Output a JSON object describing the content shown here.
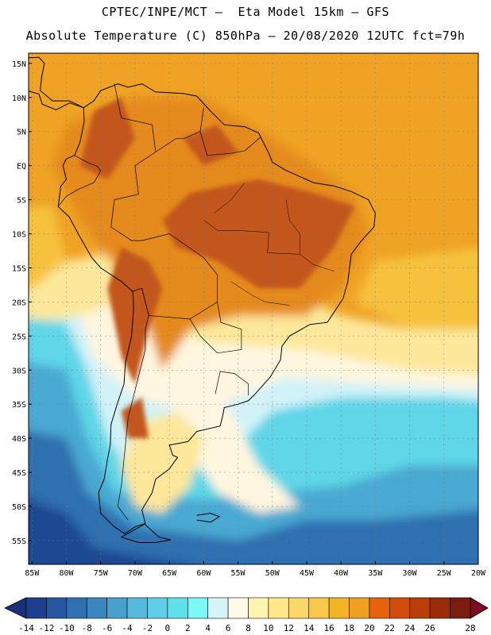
{
  "header": {
    "line1": "CPTEC/INPE/MCT —  Eta Model 15km — GFS",
    "line2": "Absolute Temperature (C) 850hPa — 20/08/2020 12UTC fct=79h"
  },
  "map": {
    "lat_labels": [
      "15N",
      "10N",
      "5N",
      "EQ",
      "5S",
      "10S",
      "15S",
      "20S",
      "25S",
      "30S",
      "35S",
      "40S",
      "45S",
      "50S",
      "55S"
    ],
    "lon_labels": [
      "85W",
      "80W",
      "75W",
      "70W",
      "65W",
      "60W",
      "55W",
      "50W",
      "45W",
      "40W",
      "35W",
      "30W",
      "25W",
      "20W"
    ],
    "lat_values": [
      15,
      10,
      5,
      0,
      -5,
      -10,
      -15,
      -20,
      -25,
      -30,
      -35,
      -40,
      -45,
      -50,
      -55
    ],
    "lon_values": [
      -85,
      -80,
      -75,
      -70,
      -65,
      -60,
      -55,
      -50,
      -45,
      -40,
      -35,
      -30,
      -25,
      -20
    ],
    "extent": {
      "lon_min": -85.5,
      "lon_max": -20,
      "lat_min": -58.5,
      "lat_max": 16.5
    }
  },
  "colorbar": {
    "labels": [
      "-14",
      "-12",
      "-10",
      "-8",
      "-6",
      "-4",
      "-2",
      "0",
      "2",
      "4",
      "6",
      "8",
      "10",
      "12",
      "14",
      "16",
      "18",
      "20",
      "22",
      "24",
      "26",
      "28"
    ],
    "colors": [
      "#1e3f8f",
      "#2657a0",
      "#3070b0",
      "#3a86bf",
      "#48a0cc",
      "#56b9dc",
      "#60cde6",
      "#5fe0ea",
      "#7cf6f6",
      "#d4f4fa",
      "#fffae8",
      "#fff4b0",
      "#ffe78a",
      "#fcd86a",
      "#f9c84a",
      "#f4b424",
      "#f0a020",
      "#e8620e",
      "#d44c0c",
      "#b83e08",
      "#9c2c08",
      "#7a1c0e"
    ],
    "under_color": "#1a2f7a",
    "over_color": "#7a0c24"
  },
  "colors": {
    "hot": "#c2561a",
    "warm": "#e58a1a",
    "orange": "#efa224",
    "gold": "#f6c23c",
    "yellow": "#fde79a",
    "cream": "#fff6df",
    "pale_cyan": "#d2f2f8",
    "cyan": "#5fd6e8",
    "teal": "#4aa9d2",
    "blue": "#2f6fb0",
    "deep_blue": "#1f4a92",
    "coast": "#000000",
    "grid": "#7a7a7a"
  }
}
